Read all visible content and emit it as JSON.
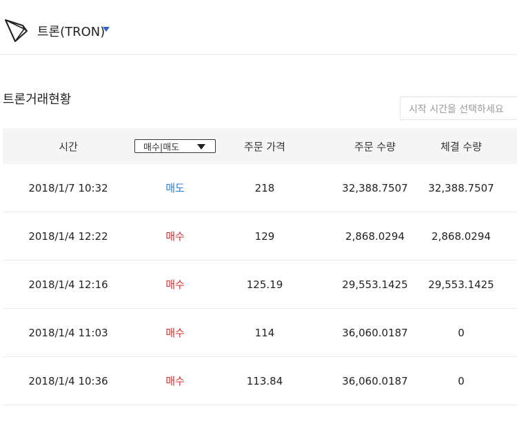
{
  "header": {
    "coin_name": "트론(TRON)"
  },
  "section": {
    "title": "트론거래현황"
  },
  "search": {
    "placeholder": "시작 시간을 선택하세요"
  },
  "table": {
    "columns": {
      "time": "시간",
      "side_filter": "매수|매도",
      "price": "주문 가격",
      "order_qty": "주문 수량",
      "filled_qty": "체결 수량"
    },
    "rows": [
      {
        "time": "2018/1/7 10:32",
        "side": "매도",
        "side_type": "sell",
        "price": "218",
        "order_qty": "32,388.7507",
        "filled_qty": "32,388.7507"
      },
      {
        "time": "2018/1/4 12:22",
        "side": "매수",
        "side_type": "buy",
        "price": "129",
        "order_qty": "2,868.0294",
        "filled_qty": "2,868.0294"
      },
      {
        "time": "2018/1/4 12:16",
        "side": "매수",
        "side_type": "buy",
        "price": "125.19",
        "order_qty": "29,553.1425",
        "filled_qty": "29,553.1425"
      },
      {
        "time": "2018/1/4 11:03",
        "side": "매수",
        "side_type": "buy",
        "price": "114",
        "order_qty": "36,060.0187",
        "filled_qty": "0"
      },
      {
        "time": "2018/1/4 10:36",
        "side": "매수",
        "side_type": "buy",
        "price": "113.84",
        "order_qty": "36,060.0187",
        "filled_qty": "0"
      }
    ]
  },
  "colors": {
    "sell": "#2f7ad6",
    "buy": "#d62e2e",
    "dropdown_caret": "#2f63c9",
    "header_bg": "#f5f5f5"
  },
  "icons": {
    "logo": "tron-logo-icon",
    "coin_dropdown": "caret-down-icon",
    "filter_dropdown": "caret-down-icon"
  }
}
